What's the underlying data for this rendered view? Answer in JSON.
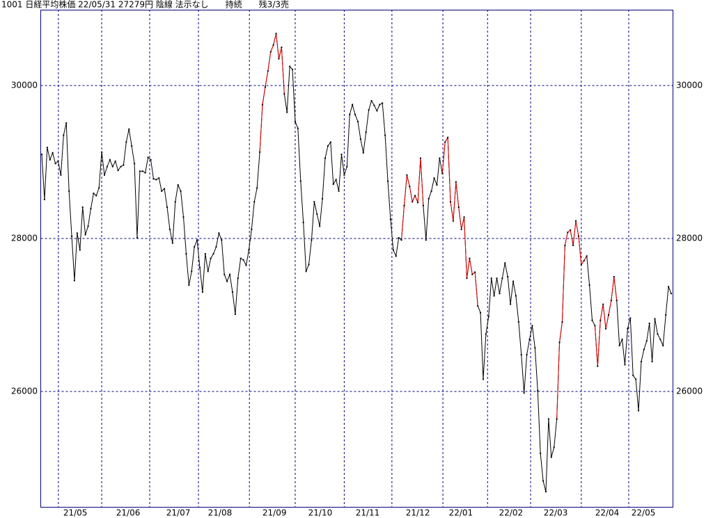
{
  "chart_data": {
    "type": "line",
    "title": "1001 日経平均株価 22/05/31 27279円 陰線 法示なし　　持続　　残3/3売",
    "xlim": [
      0,
      231
    ],
    "ylim": [
      24491,
      30991
    ],
    "yticks": [
      26000,
      28000,
      30000
    ],
    "grid": true,
    "xgrid": [
      6.1,
      22,
      39.6,
      57.5,
      76.2,
      93,
      111,
      128.5,
      147.2,
      163.6,
      179.4,
      198,
      215.4
    ],
    "xticks": [
      {
        "value": 12.3,
        "label": "21/05"
      },
      {
        "value": 31.7,
        "label": "21/06"
      },
      {
        "value": 50.1,
        "label": "21/07"
      },
      {
        "value": 65.4,
        "label": "21/08"
      },
      {
        "value": 85.4,
        "label": "21/09"
      },
      {
        "value": 102.2,
        "label": "21/10"
      },
      {
        "value": 119.6,
        "label": "21/11"
      },
      {
        "value": 138,
        "label": "21/12"
      },
      {
        "value": 153.8,
        "label": "22/01"
      },
      {
        "value": 172.2,
        "label": "22/02"
      },
      {
        "value": 188.6,
        "label": "22/03"
      },
      {
        "value": 207.5,
        "label": "22/04"
      },
      {
        "value": 220.8,
        "label": "22/05"
      }
    ],
    "color": "#000000",
    "highlight_color": "#e00000",
    "highlight_ranges": [
      [
        80,
        89
      ],
      [
        132,
        140
      ],
      [
        147,
        160
      ],
      [
        189,
        200
      ],
      [
        203,
        211
      ]
    ],
    "values": [
      29100,
      28510,
      29190,
      29030,
      29120,
      28980,
      29010,
      28830,
      29350,
      29510,
      28620,
      28030,
      27450,
      28070,
      27850,
      28410,
      28050,
      28160,
      28390,
      28590,
      28560,
      28660,
      29130,
      28830,
      28940,
      29030,
      28940,
      29010,
      28890,
      28940,
      28960,
      29260,
      29430,
      29210,
      28980,
      28010,
      28880,
      28880,
      28860,
      29060,
      29030,
      28780,
      28770,
      28790,
      28620,
      28650,
      28410,
      28120,
      27940,
      28480,
      28700,
      28620,
      28280,
      27800,
      27390,
      27570,
      27890,
      27980,
      27620,
      27300,
      27800,
      27570,
      27740,
      27800,
      27890,
      28070,
      27980,
      27530,
      27440,
      27530,
      27300,
      27010,
      27480,
      27740,
      27720,
      27650,
      27850,
      28120,
      28480,
      28660,
      29130,
      29750,
      29980,
      30190,
      30440,
      30530,
      30680,
      30350,
      30500,
      29890,
      29650,
      30250,
      30210,
      29530,
      29440,
      28750,
      28210,
      27570,
      27660,
      27980,
      28480,
      28320,
      28160,
      28520,
      29050,
      29210,
      29260,
      28710,
      28770,
      28620,
      29100,
      28830,
      28940,
      29620,
      29750,
      29620,
      29530,
      29300,
      29120,
      29390,
      29680,
      29800,
      29740,
      29670,
      29750,
      29770,
      29350,
      28750,
      28250,
      27850,
      27770,
      28010,
      27980,
      28430,
      28830,
      28680,
      28480,
      28560,
      28470,
      29050,
      28430,
      27980,
      28520,
      28620,
      28790,
      28700,
      29050,
      28850,
      29260,
      29320,
      28480,
      28230,
      28740,
      28410,
      28120,
      28280,
      27480,
      27740,
      27530,
      27560,
      27120,
      27030,
      26160,
      26750,
      26980,
      27480,
      27250,
      27480,
      27280,
      27480,
      27680,
      27500,
      27140,
      27440,
      27250,
      26910,
      26480,
      25980,
      26480,
      26680,
      26860,
      26570,
      26010,
      25190,
      24830,
      24690,
      25640,
      25140,
      25270,
      25640,
      26640,
      26910,
      27910,
      28080,
      28110,
      27910,
      28230,
      28030,
      27660,
      27710,
      27770,
      27390,
      26930,
      26860,
      26330,
      26930,
      27140,
      26820,
      27000,
      27190,
      27500,
      27190,
      26600,
      26680,
      26350,
      26820,
      26960,
      26210,
      26160,
      25750,
      26390,
      26550,
      26660,
      26890,
      26390,
      26950,
      26750,
      26680,
      26600,
      27000,
      27370,
      27280
    ]
  }
}
